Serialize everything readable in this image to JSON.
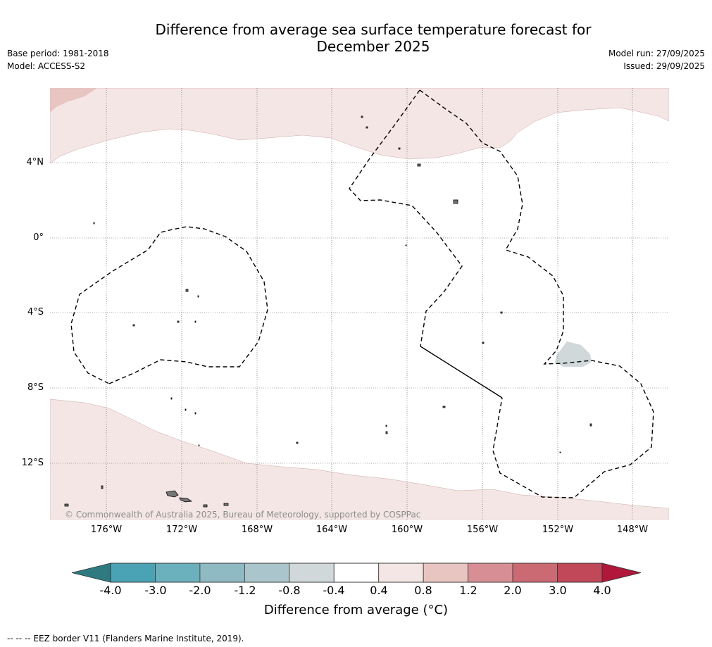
{
  "title_line1": "Difference from average sea surface temperature forecast for",
  "title_line2": "December 2025",
  "meta": {
    "base_period": "Base period: 1981-2018",
    "model": "Model: ACCESS-S2",
    "model_run": "Model run: 27/09/2025",
    "issued": "Issued: 29/09/2025"
  },
  "map": {
    "lat_labels": [
      "4°N",
      "0°",
      "4°S",
      "8°S",
      "12°S"
    ],
    "lon_labels": [
      "176°W",
      "172°W",
      "168°W",
      "164°W",
      "160°W",
      "156°W",
      "152°W",
      "148°W"
    ],
    "copyright": "© Commonwealth of Australia 2025, Bureau of Meteorology, supported by COSPPac"
  },
  "colorbar": {
    "labels": [
      "-4.0",
      "-3.0",
      "-2.0",
      "-1.2",
      "-0.8",
      "-0.4",
      "0.4",
      "0.8",
      "1.2",
      "2.0",
      "3.0",
      "4.0"
    ],
    "colors": [
      "#4aa3b4",
      "#6bb0bd",
      "#8fbac4",
      "#aac6cc",
      "#d0d8da",
      "#ffffff",
      "#f4e6e5",
      "#e8c5c1",
      "#d88e95",
      "#cc6a73",
      "#c04858"
    ],
    "under_color": "#2f7a80",
    "over_color": "#b0173a",
    "title": "Difference from average (°C)"
  },
  "footer": "--  --  -- EEZ border V11 (Flanders Marine Institute, 2019)."
}
